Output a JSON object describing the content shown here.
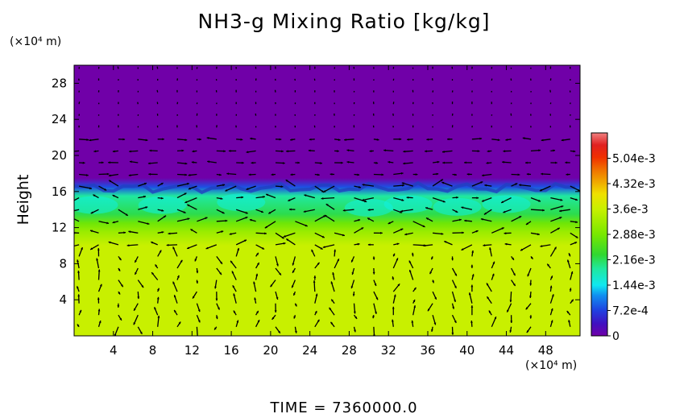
{
  "chart_data": {
    "type": "heatmap",
    "title": "NH3-g Mixing Ratio [kg/kg]",
    "ylabel": "Height",
    "x_unit": "(×10⁴ m)",
    "y_unit": "(×10⁴ m)",
    "xlim": [
      0,
      51.5
    ],
    "ylim": [
      0,
      30
    ],
    "x_ticks": [
      4,
      8,
      12,
      16,
      20,
      24,
      28,
      32,
      36,
      40,
      44,
      48
    ],
    "y_ticks": [
      4,
      8,
      12,
      16,
      20,
      24,
      28
    ],
    "colorbar": {
      "ticks": [
        "0",
        "7.2e-4",
        "1.44e-3",
        "2.16e-3",
        "2.88e-3",
        "3.6e-3",
        "4.32e-3",
        "5.04e-3"
      ],
      "range": [
        0,
        0.00576
      ]
    },
    "field_profile": [
      {
        "height": 0,
        "value": 0.0036
      },
      {
        "height": 10,
        "value": 0.0036
      },
      {
        "height": 11.5,
        "value": 0.0032
      },
      {
        "height": 12.5,
        "value": 0.0028
      },
      {
        "height": 13.5,
        "value": 0.0022
      },
      {
        "height": 15.5,
        "value": 0.0019
      },
      {
        "height": 16.5,
        "value": 0.0008
      },
      {
        "height": 17.5,
        "value": 0
      },
      {
        "height": 30,
        "value": 0
      }
    ],
    "overlay": "wind vectors",
    "colors": {
      "upper_region": "#7000a8",
      "lower_region": "#c8f000",
      "mid_band": "#28e070",
      "cyan_patch": "#10f0e0",
      "transition": "#2040c0",
      "arrows": "#000000"
    }
  },
  "time_label": "TIME  =  7360000.0"
}
